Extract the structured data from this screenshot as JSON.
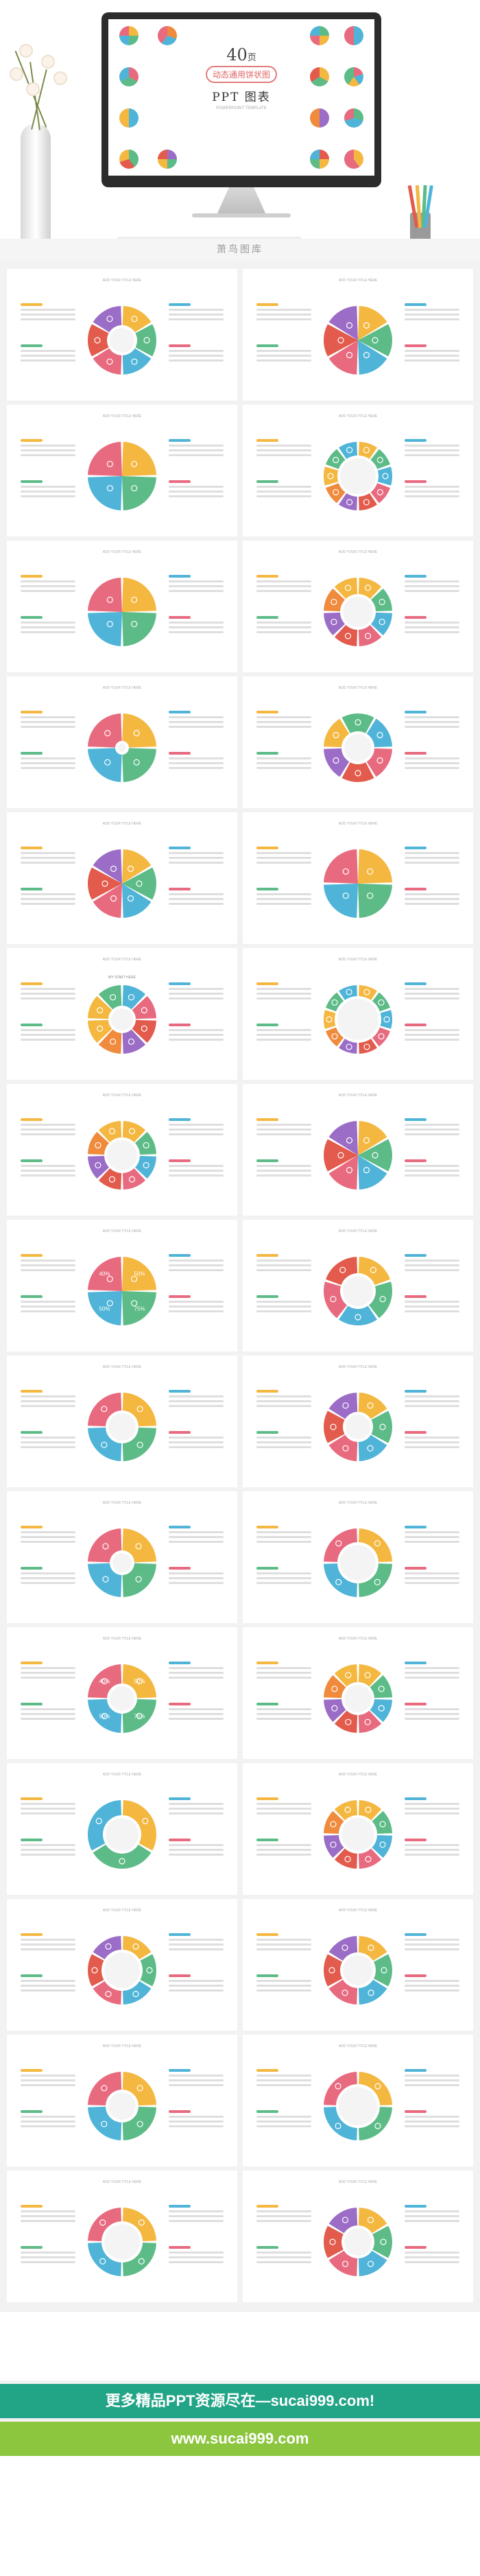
{
  "hero": {
    "cover_number": "40",
    "cover_unit": "页",
    "cover_badge": "动态通用饼状图",
    "cover_ppt": "PPT  图表",
    "cover_sub": "POWERPOINT TEMPLATE",
    "brand": "萧鸟图库"
  },
  "palette": {
    "yellow": "#f4b740",
    "green": "#5dbb87",
    "blue": "#4fb4d8",
    "pink": "#e86a7f",
    "red": "#e25b4c",
    "purple": "#9b6dc6",
    "orange": "#f08a3c"
  },
  "slides": [
    {
      "type": "ring-6",
      "percent": [],
      "title": "ADD YOUR TITLE HERE"
    },
    {
      "type": "ring-6-icons",
      "title": "ADD YOUR TITLE HERE"
    },
    {
      "type": "quad-circle",
      "title": "ADD YOUR TITLE HERE"
    },
    {
      "type": "ring-10",
      "title": "ADD YOUR TITLE HERE"
    },
    {
      "type": "quad-wave",
      "title": "ADD YOUR TITLE HERE"
    },
    {
      "type": "flower-8",
      "title": "ADD YOUR TITLE HERE"
    },
    {
      "type": "swirl-4",
      "title": "ADD YOUR TITLE HERE"
    },
    {
      "type": "half-ring",
      "title": "ADD YOUR TITLE HERE"
    },
    {
      "type": "petal-6",
      "title": "ADD YOUR TITLE HERE"
    },
    {
      "type": "cross-arrows",
      "title": "ADD YOUR TITLE HERE"
    },
    {
      "type": "semi-8",
      "title": "ADD YOUR TITLE HERE",
      "center_label": "MY START HERE"
    },
    {
      "type": "ring-dots",
      "title": "ADD YOUR TITLE HERE"
    },
    {
      "type": "ring-8-gear",
      "title": "ADD YOUR TITLE HERE"
    },
    {
      "type": "pie-6",
      "title": "ADD YOUR TITLE HERE"
    },
    {
      "type": "bubbles-4",
      "title": "ADD YOUR TITLE HERE",
      "values": [
        "50%",
        "75%",
        "50%",
        "40%"
      ]
    },
    {
      "type": "donut-layers",
      "title": "ADD YOUR TITLE HERE"
    },
    {
      "type": "donut-quad",
      "title": "ADD YOUR TITLE HERE"
    },
    {
      "type": "flower-6",
      "title": "ADD YOUR TITLE HERE"
    },
    {
      "type": "puzzle",
      "title": "ADD YOUR TITLE HERE"
    },
    {
      "type": "ring-4-tabs",
      "title": "ADD YOUR TITLE HERE"
    },
    {
      "type": "ring-4-pct",
      "title": "ADD YOUR TITLE HERE",
      "values": [
        "50%",
        "75%",
        "50%",
        "40%"
      ]
    },
    {
      "type": "ring-8-icons",
      "title": "ADD YOUR TITLE HERE"
    },
    {
      "type": "ring-3-tabs",
      "title": "ADD YOUR TITLE HERE"
    },
    {
      "type": "ring-gear-8",
      "title": "ADD YOUR TITLE HERE"
    },
    {
      "type": "person-circle",
      "title": "ADD YOUR TITLE HERE"
    },
    {
      "type": "loop-6",
      "title": "ADD YOUR TITLE HERE"
    },
    {
      "type": "cycle-arrows",
      "title": "ADD YOUR TITLE HERE"
    },
    {
      "type": "ring-4-blank",
      "title": "ADD YOUR TITLE HERE"
    },
    {
      "type": "ring-4-arrows",
      "title": "ADD YOUR TITLE HERE"
    },
    {
      "type": "ring-6-center",
      "title": "ADD YOUR TITLE HERE"
    }
  ],
  "banners": {
    "line1": "更多精品PPT资源尽在—sucai999.com!",
    "line2": "www.sucai999.com"
  }
}
